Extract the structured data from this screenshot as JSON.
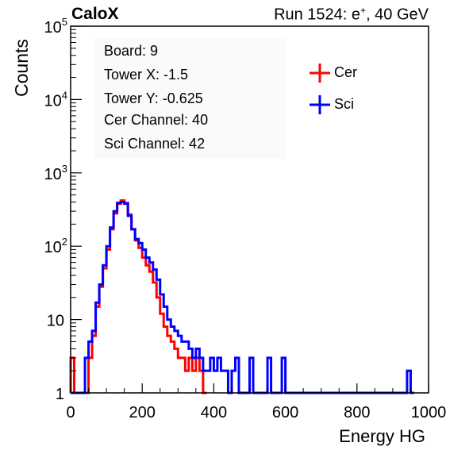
{
  "header": {
    "brand": "CaloX",
    "run_prefix": "Run 1524: e",
    "run_sup": "+",
    "run_suffix": ", 40 GeV"
  },
  "info_box": {
    "lines": [
      "Board: 9",
      "Tower X: -1.5",
      "Tower Y: -0.625",
      "Cer Channel: 40",
      "Sci Channel: 42"
    ]
  },
  "colors": {
    "cer": "#ff0000",
    "sci": "#0000ff",
    "axis": "#000000",
    "infobox": "#fafafa"
  },
  "chart_data": {
    "type": "line",
    "title": "",
    "xlabel": "Energy HG",
    "ylabel": "Counts",
    "xlim": [
      0,
      1000
    ],
    "ylim": [
      1,
      100000
    ],
    "yscale": "log",
    "grid": false,
    "legend_position": "top-right",
    "x_ticks": [
      0,
      200,
      400,
      600,
      800,
      1000
    ],
    "y_ticks": [
      {
        "value": 1,
        "base": "1",
        "exp": ""
      },
      {
        "value": 10,
        "base": "10",
        "exp": ""
      },
      {
        "value": 100,
        "base": "10",
        "exp": "2"
      },
      {
        "value": 1000,
        "base": "10",
        "exp": "3"
      },
      {
        "value": 10000,
        "base": "10",
        "exp": "4"
      },
      {
        "value": 100000,
        "base": "10",
        "exp": "5"
      }
    ],
    "series": [
      {
        "name": "Cer",
        "x": [
          0,
          10,
          20,
          30,
          40,
          50,
          60,
          70,
          80,
          90,
          100,
          110,
          120,
          130,
          140,
          150,
          160,
          170,
          180,
          190,
          200,
          210,
          220,
          230,
          240,
          250,
          260,
          270,
          280,
          290,
          300,
          310,
          320,
          330,
          340,
          350,
          360,
          370
        ],
        "values": [
          3,
          1,
          1,
          1,
          1,
          3,
          6,
          15,
          28,
          50,
          90,
          170,
          280,
          380,
          420,
          390,
          270,
          170,
          120,
          95,
          70,
          55,
          45,
          32,
          20,
          12,
          8,
          6,
          5,
          4,
          3,
          3,
          2,
          3,
          2,
          3,
          2,
          1
        ]
      },
      {
        "name": "Sci",
        "x": [
          0,
          10,
          20,
          30,
          40,
          50,
          60,
          70,
          80,
          90,
          100,
          110,
          120,
          130,
          140,
          150,
          160,
          170,
          180,
          190,
          200,
          210,
          220,
          230,
          240,
          250,
          260,
          270,
          280,
          290,
          300,
          310,
          320,
          330,
          340,
          350,
          360,
          370,
          380,
          390,
          400,
          410,
          420,
          430,
          440,
          450,
          460,
          470,
          480,
          490,
          500,
          510,
          520,
          530,
          540,
          550,
          560,
          570,
          580,
          590,
          600,
          610,
          620,
          930,
          940,
          950
        ],
        "values": [
          1,
          1,
          1,
          1,
          3,
          5,
          7,
          17,
          30,
          55,
          100,
          180,
          300,
          390,
          400,
          380,
          260,
          170,
          125,
          110,
          90,
          70,
          60,
          48,
          35,
          22,
          15,
          10,
          8,
          7,
          6,
          5,
          5,
          4,
          3,
          4,
          3,
          2,
          2,
          3,
          2,
          3,
          2,
          2,
          1,
          2,
          3,
          1,
          1,
          1,
          3,
          1,
          1,
          1,
          1,
          3,
          1,
          1,
          1,
          3,
          1,
          1,
          1,
          1,
          2,
          1
        ]
      }
    ]
  }
}
